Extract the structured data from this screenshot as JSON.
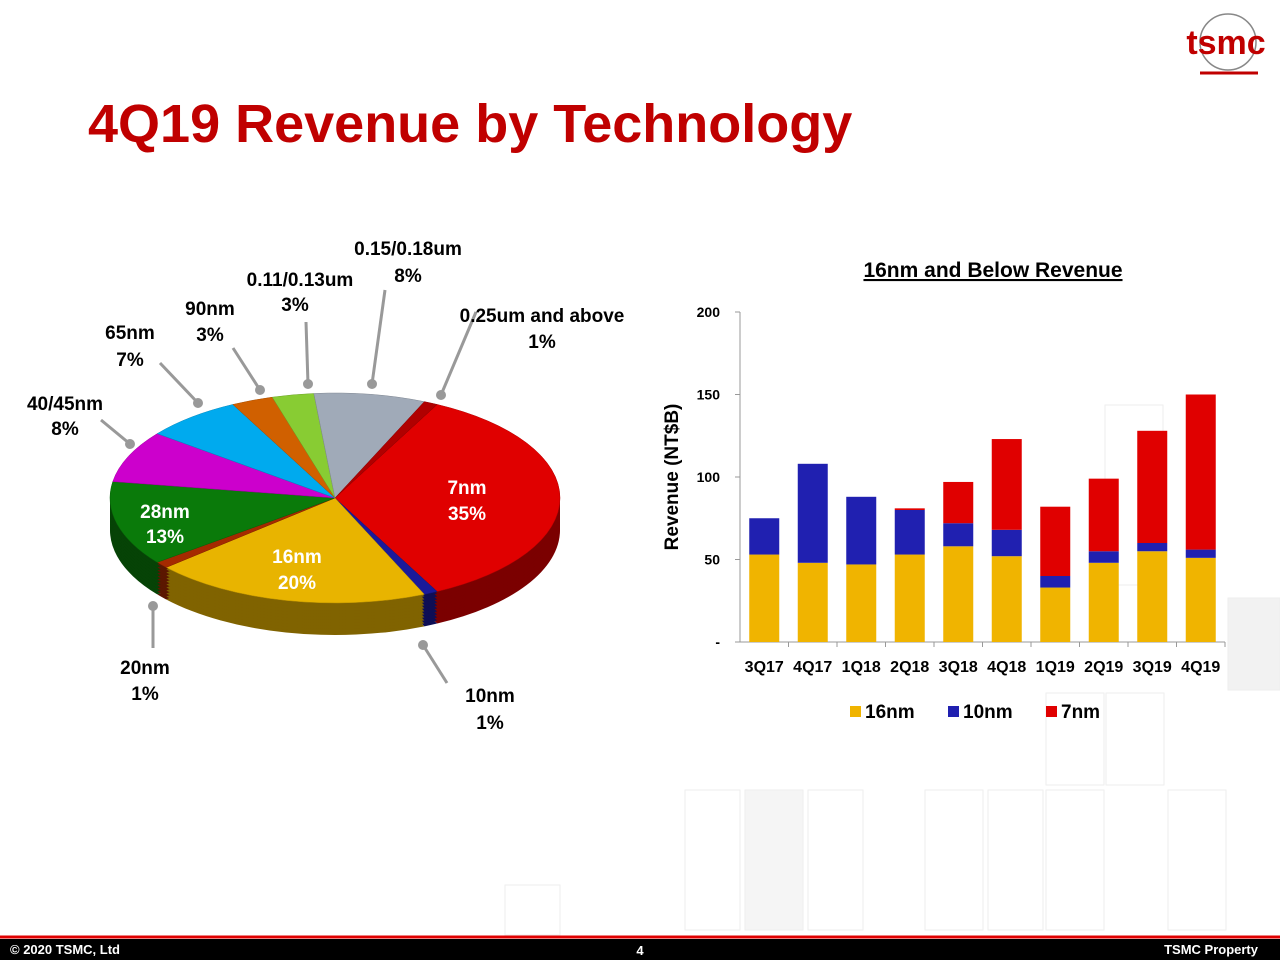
{
  "title": "4Q19 Revenue by Technology",
  "logo": "tsmc",
  "footer": {
    "copyright": "© 2020 TSMC, Ltd",
    "page": "4",
    "property": "TSMC Property"
  },
  "chart_data": [
    {
      "type": "pie",
      "categories": [
        "7nm",
        "10nm",
        "16nm",
        "20nm",
        "28nm",
        "40/45nm",
        "65nm",
        "90nm",
        "0.11/0.13um",
        "0.15/0.18um",
        "0.25um and above"
      ],
      "values": [
        35,
        1,
        20,
        1,
        13,
        8,
        7,
        3,
        3,
        8,
        1
      ],
      "value_labels": [
        "35%",
        "1%",
        "20%",
        "1%",
        "13%",
        "8%",
        "7%",
        "3%",
        "3%",
        "8%",
        "1%"
      ],
      "colors": [
        "#e00000",
        "#1a1a9a",
        "#e8b400",
        "#a52a00",
        "#0a7a0a",
        "#cc00cc",
        "#00aaee",
        "#d06000",
        "#88cc33",
        "#a0aab8",
        "#b00000"
      ]
    },
    {
      "type": "bar",
      "title": "16nm and Below Revenue",
      "ylabel": "Revenue (NT$B)",
      "categories": [
        "3Q17",
        "4Q17",
        "1Q18",
        "2Q18",
        "3Q18",
        "4Q18",
        "1Q19",
        "2Q19",
        "3Q19",
        "4Q19"
      ],
      "series": [
        {
          "name": "16nm",
          "color": "#f0b400",
          "values": [
            53,
            48,
            47,
            53,
            58,
            52,
            33,
            48,
            55,
            51
          ]
        },
        {
          "name": "10nm",
          "color": "#2020b0",
          "values": [
            22,
            60,
            41,
            27,
            14,
            16,
            7,
            7,
            5,
            5
          ]
        },
        {
          "name": "7nm",
          "color": "#e00000",
          "values": [
            0,
            0,
            0,
            1,
            25,
            55,
            42,
            44,
            68,
            94
          ]
        }
      ],
      "stacked": true,
      "ylim": [
        0,
        200
      ],
      "yticks": [
        {
          "value": 0,
          "label": "-"
        },
        50,
        100,
        150,
        200
      ]
    }
  ]
}
